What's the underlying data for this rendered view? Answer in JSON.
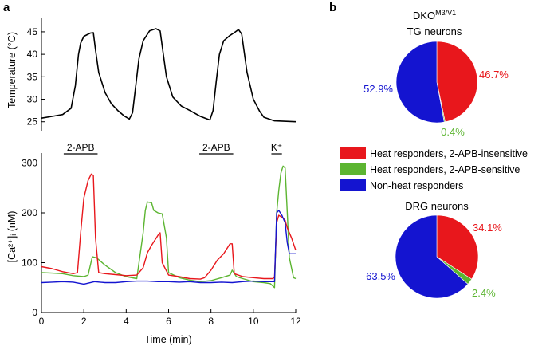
{
  "panels": {
    "a": {
      "label": "a"
    },
    "b": {
      "label": "b"
    }
  },
  "colors": {
    "red": "#e8171c",
    "green": "#5cb531",
    "blue": "#1414d0",
    "black": "#000000"
  },
  "chart_data": [
    {
      "type": "line",
      "panel": "a-top",
      "xlabel": "",
      "ylabel": "Temperature (°C)",
      "xlim": [
        0,
        12
      ],
      "ylim": [
        23,
        48
      ],
      "yticks": [
        25,
        30,
        35,
        40,
        45
      ],
      "series": [
        {
          "color": "black",
          "x": [
            0,
            0.5,
            1.0,
            1.4,
            1.6,
            1.75,
            1.85,
            2.0,
            2.3,
            2.45,
            2.55,
            2.7,
            3.0,
            3.3,
            3.6,
            3.9,
            4.15,
            4.3,
            4.45,
            4.6,
            4.8,
            5.1,
            5.4,
            5.6,
            5.75,
            5.9,
            6.2,
            6.6,
            7.0,
            7.5,
            7.95,
            8.1,
            8.25,
            8.4,
            8.6,
            8.9,
            9.1,
            9.3,
            9.45,
            9.7,
            10.0,
            10.3,
            10.5,
            11.0,
            12.0
          ],
          "y": [
            25.8,
            26.2,
            26.6,
            28.0,
            33.0,
            40.0,
            42.5,
            44.0,
            44.7,
            44.8,
            41.0,
            36.0,
            31.5,
            29.0,
            27.5,
            26.3,
            25.6,
            27.0,
            33.0,
            39.0,
            43.0,
            45.2,
            45.7,
            45.2,
            40.0,
            35.0,
            30.5,
            28.5,
            27.5,
            26.2,
            25.4,
            27.5,
            34.0,
            40.0,
            43.0,
            44.2,
            44.8,
            45.5,
            44.5,
            36.0,
            30.0,
            27.3,
            26.0,
            25.2,
            25.0
          ]
        }
      ]
    },
    {
      "type": "line",
      "panel": "a-bottom",
      "xlabel": "Time (min)",
      "ylabel": "[Ca²⁺]ᵢ (nM)",
      "xlim": [
        0,
        12
      ],
      "ylim": [
        0,
        320
      ],
      "xticks": [
        0,
        2,
        4,
        6,
        8,
        10,
        12
      ],
      "yticks": [
        0,
        100,
        200,
        300
      ],
      "annotations": [
        {
          "text": "2-APB",
          "x_start": 1.05,
          "x_end": 2.65
        },
        {
          "text": "2-APB",
          "x_start": 7.45,
          "x_end": 9.05
        },
        {
          "text": "K⁺",
          "x_start": 10.85,
          "x_end": 11.35
        }
      ],
      "series": [
        {
          "color": "red",
          "x": [
            0,
            0.5,
            1.0,
            1.5,
            1.7,
            1.85,
            2.0,
            2.2,
            2.35,
            2.45,
            2.55,
            2.7,
            3.0,
            3.5,
            4.0,
            4.5,
            4.8,
            5.0,
            5.2,
            5.5,
            5.6,
            5.7,
            6.0,
            6.5,
            7.0,
            7.5,
            7.7,
            8.0,
            8.3,
            8.6,
            8.9,
            9.0,
            9.1,
            9.5,
            10.0,
            10.5,
            10.9,
            11.0,
            11.1,
            11.2,
            11.4,
            11.5,
            11.6,
            11.8,
            12.0
          ],
          "y": [
            92,
            88,
            82,
            78,
            80,
            160,
            230,
            265,
            278,
            275,
            150,
            80,
            78,
            76,
            74,
            75,
            90,
            120,
            135,
            155,
            160,
            100,
            75,
            72,
            68,
            67,
            70,
            85,
            105,
            118,
            138,
            138,
            78,
            72,
            70,
            68,
            68,
            70,
            180,
            195,
            190,
            185,
            170,
            150,
            125
          ]
        },
        {
          "color": "green",
          "x": [
            0,
            0.5,
            1.0,
            1.5,
            2.0,
            2.2,
            2.4,
            2.6,
            3.0,
            3.5,
            4.0,
            4.5,
            4.8,
            4.9,
            5.0,
            5.2,
            5.3,
            5.5,
            5.7,
            5.9,
            6.0,
            6.5,
            7.0,
            7.5,
            8.0,
            8.5,
            8.9,
            9.0,
            9.2,
            9.5,
            10.0,
            10.5,
            10.8,
            11.0,
            11.1,
            11.2,
            11.3,
            11.4,
            11.5,
            11.6,
            11.7,
            11.9,
            12.0
          ],
          "y": [
            80,
            79,
            78,
            74,
            72,
            75,
            112,
            110,
            95,
            80,
            72,
            68,
            160,
            205,
            222,
            220,
            205,
            200,
            198,
            150,
            80,
            70,
            65,
            62,
            64,
            70,
            75,
            85,
            72,
            68,
            62,
            60,
            58,
            50,
            200,
            245,
            280,
            294,
            290,
            200,
            110,
            70,
            68
          ]
        },
        {
          "color": "blue",
          "x": [
            0,
            0.5,
            1.0,
            1.5,
            2.0,
            2.5,
            3.0,
            3.5,
            4.0,
            4.5,
            5.0,
            5.5,
            6.0,
            6.5,
            7.0,
            7.5,
            8.0,
            8.5,
            9.0,
            9.5,
            10.0,
            10.5,
            10.9,
            11.0,
            11.1,
            11.2,
            11.35,
            11.5,
            11.6,
            11.7,
            11.8,
            12.0
          ],
          "y": [
            60,
            61,
            62,
            61,
            57,
            62,
            60,
            60,
            62,
            63,
            63,
            62,
            62,
            61,
            62,
            60,
            60,
            61,
            60,
            62,
            63,
            62,
            62,
            62,
            200,
            205,
            195,
            180,
            140,
            118,
            118,
            118
          ]
        }
      ]
    },
    {
      "type": "pie",
      "panel": "b-top",
      "title_line1": "DKO",
      "title_sup": "M3/V1",
      "title_line2": "TG neurons",
      "slices": [
        {
          "label": "46.7%",
          "value": 46.7,
          "color": "red"
        },
        {
          "label": "0.4%",
          "value": 0.4,
          "color": "green"
        },
        {
          "label": "52.9%",
          "value": 52.9,
          "color": "blue"
        }
      ]
    },
    {
      "type": "pie",
      "panel": "b-bottom",
      "title_line1": "DRG neurons",
      "slices": [
        {
          "label": "34.1%",
          "value": 34.1,
          "color": "red"
        },
        {
          "label": "2.4%",
          "value": 2.4,
          "color": "green"
        },
        {
          "label": "63.5%",
          "value": 63.5,
          "color": "blue"
        }
      ]
    }
  ],
  "legend": [
    {
      "label": "Heat responders, 2-APB-insensitive",
      "color": "red"
    },
    {
      "label": "Heat responders, 2-APB-sensitive",
      "color": "green"
    },
    {
      "label": "Non-heat responders",
      "color": "blue"
    }
  ]
}
